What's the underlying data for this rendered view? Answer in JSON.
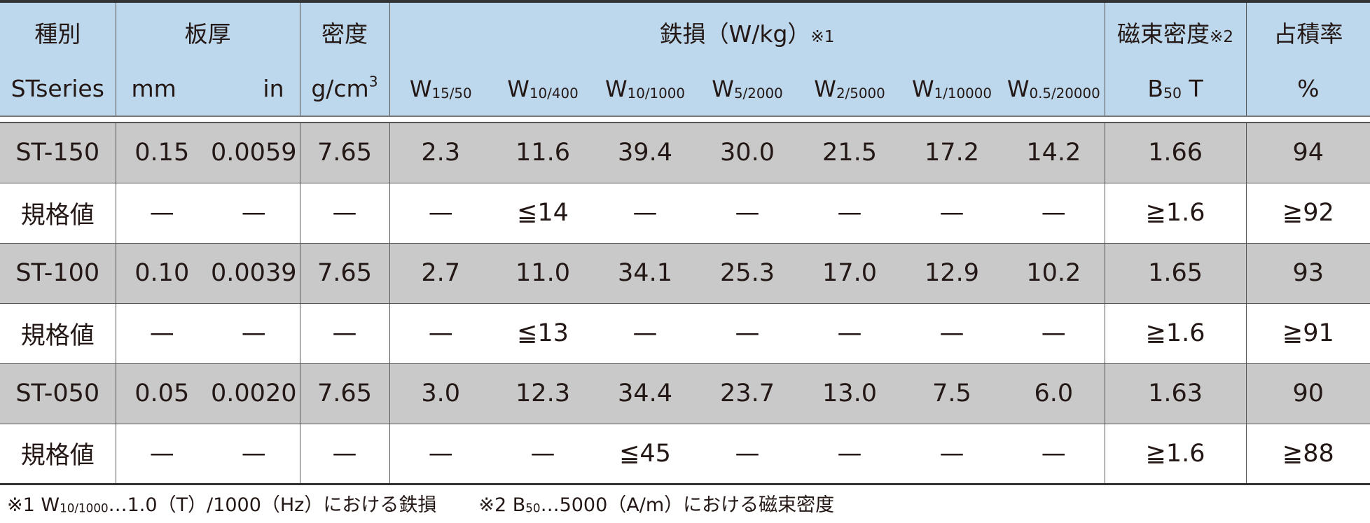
{
  "table": {
    "header_top": {
      "type": "種別",
      "thickness": "板厚",
      "density": "密度",
      "iron_loss": {
        "text": "鉄損（W/kg）",
        "note": "※1"
      },
      "flux": {
        "text": "磁束密度",
        "note": "※2"
      },
      "space_factor": "占積率"
    },
    "header_bottom": {
      "type": "STseries",
      "mm": "mm",
      "in": "in",
      "density_unit": {
        "base": "g/cm",
        "sup": "3"
      },
      "loss_columns": [
        {
          "base": "W",
          "sub": "15/50"
        },
        {
          "base": "W",
          "sub": "10/400"
        },
        {
          "base": "W",
          "sub": "10/1000"
        },
        {
          "base": "W",
          "sub": "5/2000"
        },
        {
          "base": "W",
          "sub": "2/5000"
        },
        {
          "base": "W",
          "sub": "1/10000"
        },
        {
          "base": "W",
          "sub": "0.5/20000"
        }
      ],
      "flux_unit": {
        "base": "B",
        "sub": "50",
        "after": " T"
      },
      "space_unit": "%"
    },
    "rows": [
      [
        "ST-150",
        "0.15",
        "0.0059",
        "7.65",
        "2.3",
        "11.6",
        "39.4",
        "30.0",
        "21.5",
        "17.2",
        "14.2",
        "1.66",
        "94"
      ],
      [
        "規格値",
        "—",
        "—",
        "—",
        "—",
        "≦14",
        "—",
        "—",
        "—",
        "—",
        "—",
        "≧1.6",
        "≧92"
      ],
      [
        "ST-100",
        "0.10",
        "0.0039",
        "7.65",
        "2.7",
        "11.0",
        "34.1",
        "25.3",
        "17.0",
        "12.9",
        "10.2",
        "1.65",
        "93"
      ],
      [
        "規格値",
        "—",
        "—",
        "—",
        "—",
        "≦13",
        "—",
        "—",
        "—",
        "—",
        "—",
        "≧1.6",
        "≧91"
      ],
      [
        "ST-050",
        "0.05",
        "0.0020",
        "7.65",
        "3.0",
        "12.3",
        "34.4",
        "23.7",
        "13.0",
        "7.5",
        "6.0",
        "1.63",
        "90"
      ],
      [
        "規格値",
        "—",
        "—",
        "—",
        "—",
        "—",
        "≦45",
        "—",
        "—",
        "—",
        "—",
        "≧1.6",
        "≧88"
      ]
    ]
  },
  "footnotes": [
    {
      "pre": "※1 W",
      "sub": "10/1000",
      "post": "…1.0（T）/1000（Hz）における鉄損"
    },
    {
      "pre": "※2 B",
      "sub": "50",
      "post": "…5000（A/m）における磁束密度"
    }
  ]
}
